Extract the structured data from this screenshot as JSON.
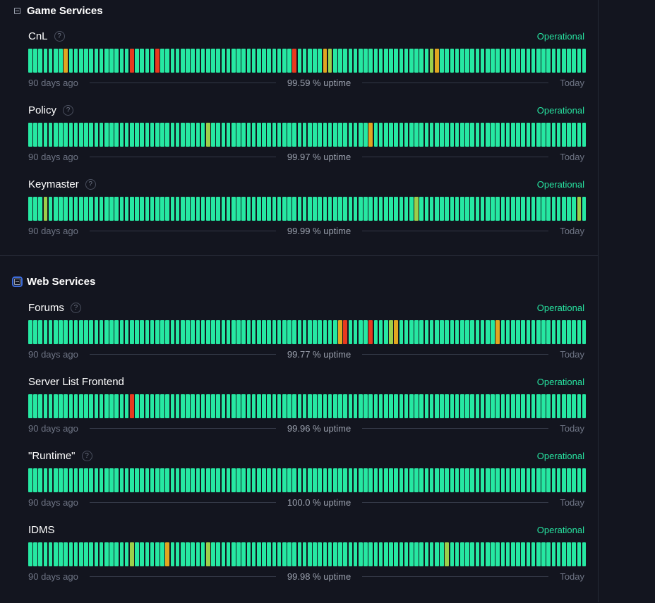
{
  "colors": {
    "operational": "#26e8a2",
    "minor": "#9ccf4a",
    "degraded": "#e1a620",
    "outage": "#e8391f",
    "status_text": "#27e3a0"
  },
  "icons": {
    "collapse": "minus-square-icon",
    "help": "question-circle-icon"
  },
  "groups": [
    {
      "title": "Game Services",
      "components": [
        {
          "name": "CnL",
          "has_help": true,
          "status": "Operational",
          "left_label": "90 days ago",
          "uptime": "99.59 % uptime",
          "right_label": "Today",
          "incidents": {
            "7": "degraded",
            "20": "outage",
            "25": "outage",
            "52": "outage",
            "58": "degraded",
            "59": "minor",
            "79": "minor",
            "80": "degraded"
          }
        },
        {
          "name": "Policy",
          "has_help": true,
          "status": "Operational",
          "left_label": "90 days ago",
          "uptime": "99.97 % uptime",
          "right_label": "Today",
          "incidents": {
            "35": "minor",
            "67": "degraded"
          }
        },
        {
          "name": "Keymaster",
          "has_help": true,
          "status": "Operational",
          "left_label": "90 days ago",
          "uptime": "99.99 % uptime",
          "right_label": "Today",
          "incidents": {
            "3": "minor",
            "76": "minor",
            "108": "minor"
          }
        }
      ]
    },
    {
      "title": "Web Services",
      "components": [
        {
          "name": "Forums",
          "has_help": true,
          "status": "Operational",
          "left_label": "90 days ago",
          "uptime": "99.77 % uptime",
          "right_label": "Today",
          "incidents": {
            "61": "degraded",
            "62": "outage",
            "67": "outage",
            "71": "minor",
            "72": "degraded",
            "92": "degraded"
          }
        },
        {
          "name": "Server List Frontend",
          "has_help": false,
          "status": "Operational",
          "left_label": "90 days ago",
          "uptime": "99.96 % uptime",
          "right_label": "Today",
          "incidents": {
            "20": "outage"
          }
        },
        {
          "name": "\"Runtime\"",
          "has_help": true,
          "status": "Operational",
          "left_label": "90 days ago",
          "uptime": "100.0 % uptime",
          "right_label": "Today",
          "incidents": {}
        },
        {
          "name": "IDMS",
          "has_help": false,
          "status": "Operational",
          "left_label": "90 days ago",
          "uptime": "99.98 % uptime",
          "right_label": "Today",
          "incidents": {
            "20": "minor",
            "27": "degraded",
            "35": "minor",
            "82": "minor"
          }
        }
      ]
    }
  ]
}
